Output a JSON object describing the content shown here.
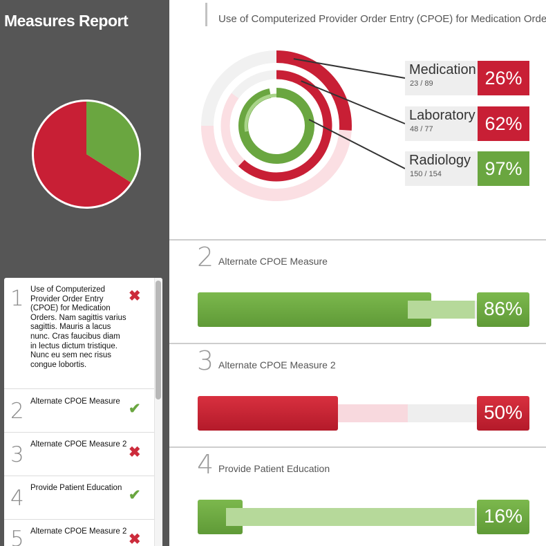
{
  "app": {
    "title": "Measures Report"
  },
  "colors": {
    "red": "#c81f35",
    "green": "#6aa640",
    "sidebar": "#565656",
    "track": "#eeeeee"
  },
  "summary_pie": {
    "red_fraction": 0.66,
    "green_fraction": 0.34
  },
  "measure_list": [
    {
      "number": "1",
      "text": "Use of Computerized Provider Order Entry (CPOE) for Medication Orders. Nam sagittis varius sagittis. Mauris a lacus nunc. Cras faucibus diam in lectus dictum tristique. Nunc eu sem nec risus congue lobortis.",
      "status": "fail",
      "status_icon": "x-icon"
    },
    {
      "number": "2",
      "text": "Alternate CPOE Measure",
      "status": "pass",
      "status_icon": "check-icon"
    },
    {
      "number": "3",
      "text": "Alternate CPOE Measure 2",
      "status": "fail",
      "status_icon": "x-icon"
    },
    {
      "number": "4",
      "text": "Provide Patient Education",
      "status": "pass",
      "status_icon": "check-icon"
    },
    {
      "number": "5",
      "text": "Alternate CPOE Measure 2",
      "status": "fail",
      "status_icon": "x-icon"
    }
  ],
  "detail": {
    "title": "Use of Computerized Provider Order Entry (CPOE) for Medication Orders",
    "categories": [
      {
        "name": "Medication",
        "count": "23 / 89",
        "pct": "26%",
        "value": 0.26,
        "status": "fail"
      },
      {
        "name": "Laboratory",
        "count": "48 / 77",
        "pct": "62%",
        "value": 0.62,
        "status": "fail"
      },
      {
        "name": "Radiology",
        "count": "150 / 154",
        "pct": "97%",
        "value": 0.97,
        "status": "pass"
      }
    ]
  },
  "bars": [
    {
      "number": "2",
      "title": "Alternate CPOE Measure",
      "pct": "86%",
      "value": 0.86,
      "target": 0.8,
      "status": "pass"
    },
    {
      "number": "3",
      "title": "Alternate CPOE Measure 2",
      "pct": "50%",
      "value": 0.5,
      "target": 0.8,
      "status": "fail"
    },
    {
      "number": "4",
      "title": "Provide Patient Education",
      "pct": "16%",
      "value": 0.16,
      "target": 0.1,
      "status": "pass"
    }
  ]
}
